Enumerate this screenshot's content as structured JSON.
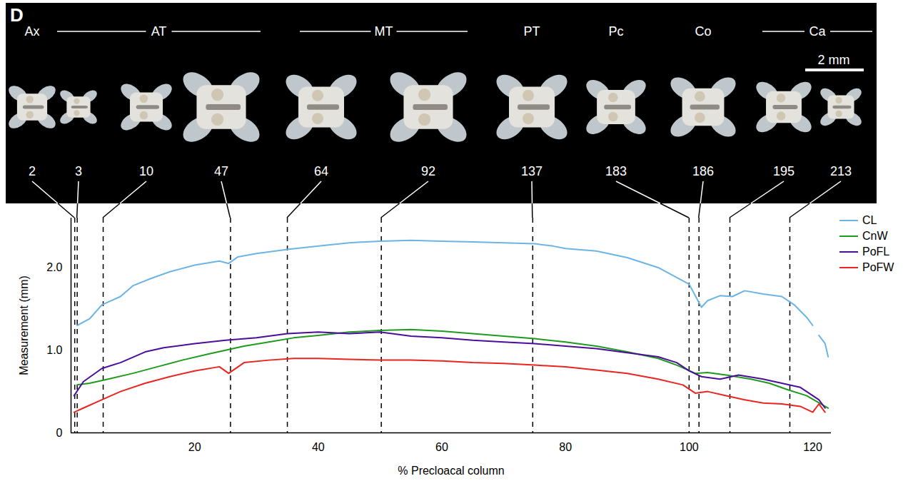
{
  "chart_data": {
    "type": "line",
    "x_label": "% Precloacal column",
    "y_label": "Measurement (mm)",
    "xlim": [
      0,
      123
    ],
    "ylim": [
      0,
      2.6
    ],
    "xticks": [
      20,
      40,
      60,
      80,
      100,
      120
    ],
    "yticks": [
      0,
      {
        "value": 1,
        "label": "1.0"
      },
      {
        "value": 2,
        "label": "2.0"
      }
    ],
    "legend": "right",
    "vertical_lines": [
      {
        "vertebra": 2,
        "x": 0.6
      },
      {
        "vertebra": 3,
        "x": 1.0
      },
      {
        "vertebra": 10,
        "x": 5.2
      },
      {
        "vertebra": 47,
        "x": 25.8
      },
      {
        "vertebra": 64,
        "x": 35.0
      },
      {
        "vertebra": 92,
        "x": 50.2
      },
      {
        "vertebra": 137,
        "x": 74.7
      },
      {
        "vertebra": 183,
        "x": 100.0
      },
      {
        "vertebra": 186,
        "x": 101.6
      },
      {
        "vertebra": 195,
        "x": 106.6
      },
      {
        "vertebra": 213,
        "x": 116.3
      }
    ],
    "series": [
      {
        "name": "CL",
        "color": "#6cb4e4",
        "x": [
          1,
          3,
          5,
          8,
          10,
          13,
          16,
          20,
          24,
          25.5,
          27,
          30,
          35,
          40,
          45,
          50,
          55,
          60,
          65,
          70,
          75,
          78,
          80,
          85,
          90,
          95,
          98,
          100,
          102,
          103,
          105,
          107,
          109,
          112,
          115,
          117,
          119,
          120,
          120.5,
          121,
          122,
          122.5
        ],
        "values": [
          1.3,
          1.38,
          1.55,
          1.65,
          1.78,
          1.87,
          1.95,
          2.03,
          2.08,
          2.05,
          2.13,
          2.17,
          2.22,
          2.26,
          2.3,
          2.32,
          2.33,
          2.32,
          2.31,
          2.3,
          2.29,
          2.26,
          2.23,
          2.2,
          2.12,
          2.0,
          1.88,
          1.8,
          1.52,
          1.6,
          1.66,
          1.65,
          1.72,
          1.68,
          1.65,
          1.55,
          1.4,
          1.3,
          null,
          1.18,
          1.08,
          0.92
        ]
      },
      {
        "name": "CnW",
        "color": "#1f9a1f",
        "x": [
          1,
          3,
          6,
          10,
          14,
          18,
          22,
          25,
          28,
          32,
          36,
          40,
          45,
          50,
          55,
          60,
          65,
          70,
          75,
          80,
          85,
          90,
          95,
          98,
          101,
          103,
          106,
          110,
          113,
          116,
          119,
          122.5
        ],
        "values": [
          0.58,
          0.6,
          0.65,
          0.72,
          0.8,
          0.88,
          0.95,
          1.0,
          1.05,
          1.1,
          1.15,
          1.18,
          1.22,
          1.24,
          1.25,
          1.23,
          1.2,
          1.17,
          1.14,
          1.1,
          1.05,
          0.98,
          0.9,
          0.82,
          0.72,
          0.73,
          0.7,
          0.65,
          0.6,
          0.52,
          0.45,
          0.3
        ]
      },
      {
        "name": "PoFL",
        "color": "#4b0e9b",
        "x": [
          0.5,
          2,
          5,
          8,
          12,
          15,
          20,
          25,
          30,
          35,
          40,
          45,
          50,
          55,
          60,
          65,
          70,
          75,
          80,
          85,
          90,
          95,
          98,
          100,
          102,
          105,
          108,
          112,
          115,
          118,
          120,
          121,
          122
        ],
        "values": [
          0.45,
          0.62,
          0.78,
          0.85,
          0.98,
          1.03,
          1.08,
          1.12,
          1.15,
          1.2,
          1.22,
          1.2,
          1.22,
          1.17,
          1.15,
          1.12,
          1.1,
          1.08,
          1.05,
          1.02,
          0.97,
          0.92,
          0.85,
          0.75,
          0.68,
          0.65,
          0.7,
          0.65,
          0.6,
          0.55,
          0.45,
          0.4,
          0.3
        ]
      },
      {
        "name": "PoFW",
        "color": "#e8251f",
        "x": [
          0.5,
          2,
          5,
          8,
          12,
          16,
          20,
          24,
          25.5,
          28,
          32,
          36,
          40,
          45,
          50,
          55,
          60,
          65,
          70,
          75,
          80,
          85,
          90,
          95,
          99,
          101,
          103,
          106,
          109,
          112,
          115,
          118,
          120,
          121,
          122
        ],
        "values": [
          0.25,
          0.3,
          0.4,
          0.5,
          0.6,
          0.68,
          0.75,
          0.8,
          0.72,
          0.85,
          0.88,
          0.9,
          0.9,
          0.89,
          0.88,
          0.88,
          0.87,
          0.85,
          0.84,
          0.82,
          0.8,
          0.76,
          0.72,
          0.65,
          0.58,
          0.48,
          0.5,
          0.45,
          0.4,
          0.36,
          0.35,
          0.32,
          0.25,
          0.35,
          0.25
        ]
      }
    ]
  },
  "figure": {
    "panel_label": "D",
    "scale_bar": "2 mm",
    "regions": [
      {
        "label": "Ax",
        "vertebrae": [
          2
        ]
      },
      {
        "label": "AT",
        "vertebrae": [
          3,
          10,
          47
        ]
      },
      {
        "label": "MT",
        "vertebrae": [
          64,
          92
        ]
      },
      {
        "label": "PT",
        "vertebrae": [
          137
        ]
      },
      {
        "label": "Pc",
        "vertebrae": [
          183
        ]
      },
      {
        "label": "Co",
        "vertebrae": [
          186
        ]
      },
      {
        "label": "Ca",
        "vertebrae": [
          195,
          213
        ]
      }
    ]
  }
}
